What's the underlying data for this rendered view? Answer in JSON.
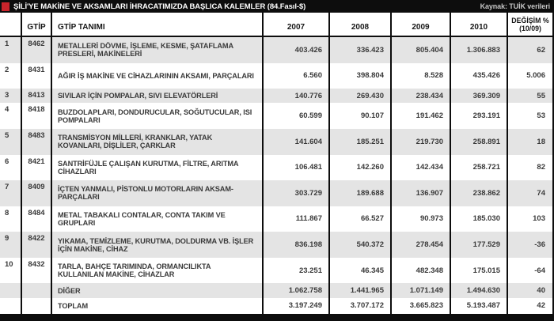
{
  "title_bar": {
    "title": "ŞİLİ'YE MAKİNE VE AKSAMLARI İHRACATIMIZDA BAŞLICA KALEMLER (84.Fasıl-$)",
    "source": "Kaynak: TUİK verileri"
  },
  "colors": {
    "accent_red": "#c9242b",
    "bar_black": "#0d0d0d",
    "row_shade": "#e4e4e4",
    "text": "#3a3a3a"
  },
  "table": {
    "headers": {
      "rank": "",
      "code": "GTİP",
      "name": "GTİP TANIMI",
      "years": [
        "2007",
        "2008",
        "2009",
        "2010"
      ],
      "change1": "DEĞİŞİM %",
      "change2": "(10/09)"
    },
    "rows": [
      {
        "rank": "1",
        "code": "8462",
        "name": "METALLERİ DÖVME, İŞLEME, KESME, ŞATAFLAMA PRESLERİ, MAKİNELERİ",
        "values": [
          "403.426",
          "336.423",
          "805.404",
          "1.306.883"
        ],
        "change": "62"
      },
      {
        "rank": "2",
        "code": "8431",
        "name": "AĞIR İŞ MAKİNE VE CİHAZLARININ AKSAMI, PARÇALARI",
        "values": [
          "6.560",
          "398.804",
          "8.528",
          "435.426"
        ],
        "change": "5.006"
      },
      {
        "rank": "3",
        "code": "8413",
        "name": "SIVILAR İÇİN POMPALAR, SIVI ELEVATÖRLERİ",
        "values": [
          "140.776",
          "269.430",
          "238.434",
          "369.309"
        ],
        "change": "55"
      },
      {
        "rank": "4",
        "code": "8418",
        "name": "BUZDOLAPLARI, DONDURUCULAR, SOĞUTUCULAR, ISI POMPALARI",
        "values": [
          "60.599",
          "90.107",
          "191.462",
          "293.191"
        ],
        "change": "53"
      },
      {
        "rank": "5",
        "code": "8483",
        "name": "TRANSMİSYON MİLLERİ, KRANKLAR, YATAK KOVANLARI, DİŞLİLER, ÇARKLAR",
        "values": [
          "141.604",
          "185.251",
          "219.730",
          "258.891"
        ],
        "change": "18"
      },
      {
        "rank": "6",
        "code": "8421",
        "name": "SANTRİFÜJLE ÇALIŞAN KURUTMA, FİLTRE, ARITMA CİHAZLARI",
        "values": [
          "106.481",
          "142.260",
          "142.434",
          "258.721"
        ],
        "change": "82"
      },
      {
        "rank": "7",
        "code": "8409",
        "name": "İÇTEN YANMALI, PİSTONLU MOTORLARIN AKSAM-PARÇALARI",
        "values": [
          "303.729",
          "189.688",
          "136.907",
          "238.862"
        ],
        "change": "74"
      },
      {
        "rank": "8",
        "code": "8484",
        "name": "METAL TABAKALI CONTALAR, CONTA TAKIM VE GRUPLARI",
        "values": [
          "111.867",
          "66.527",
          "90.973",
          "185.030"
        ],
        "change": "103"
      },
      {
        "rank": "9",
        "code": "8422",
        "name": "YIKAMA, TEMİZLEME, KURUTMA, DOLDURMA VB. İŞLER İÇİN MAKİNE, CİHAZ",
        "values": [
          "836.198",
          "540.372",
          "278.454",
          "177.529"
        ],
        "change": "-36"
      },
      {
        "rank": "10",
        "code": "8432",
        "name": "TARLA, BAHÇE TARIMINDA, ORMANCILIKTA KULLANILAN MAKİNE, CİHAZLAR",
        "values": [
          "23.251",
          "46.345",
          "482.348",
          "175.015"
        ],
        "change": "-64"
      },
      {
        "rank": "",
        "code": "",
        "name": "DİĞER",
        "values": [
          "1.062.758",
          "1.441.965",
          "1.071.149",
          "1.494.630"
        ],
        "change": "40"
      },
      {
        "rank": "",
        "code": "",
        "name": "TOPLAM",
        "values": [
          "3.197.249",
          "3.707.172",
          "3.665.823",
          "5.193.487"
        ],
        "change": "42"
      }
    ]
  }
}
